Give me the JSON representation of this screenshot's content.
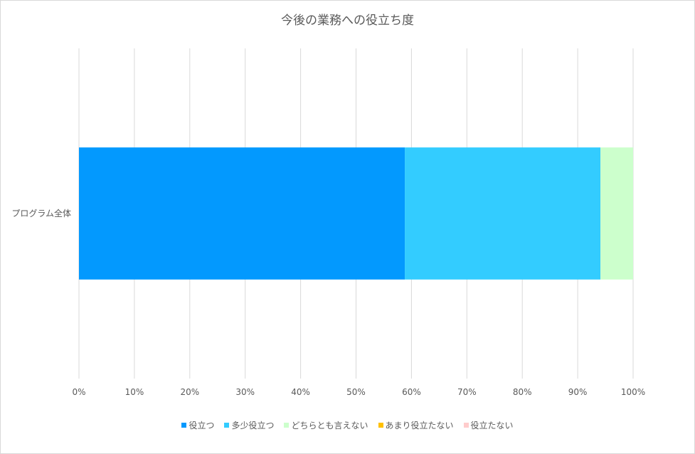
{
  "chart_data": {
    "type": "bar",
    "orientation": "horizontal",
    "stacked": "percent",
    "title": "今後の業務への役立ち度",
    "categories": [
      "プログラム全体"
    ],
    "series": [
      {
        "name": "役立つ",
        "values": [
          58.8
        ],
        "color": "#0399fe"
      },
      {
        "name": "多少役立つ",
        "values": [
          35.3
        ],
        "color": "#33ccff"
      },
      {
        "name": "どちらとも言えない",
        "values": [
          5.9
        ],
        "color": "#ccffcc"
      },
      {
        "name": "あまり役立たない",
        "values": [
          0
        ],
        "color": "#ffc000"
      },
      {
        "name": "役立たない",
        "values": [
          0
        ],
        "color": "#ffcccc"
      }
    ],
    "xlim": [
      0,
      100
    ],
    "xticks": [
      "0%",
      "10%",
      "20%",
      "30%",
      "40%",
      "50%",
      "60%",
      "70%",
      "80%",
      "90%",
      "100%"
    ],
    "grid": "vertical",
    "legend": "bottom"
  }
}
